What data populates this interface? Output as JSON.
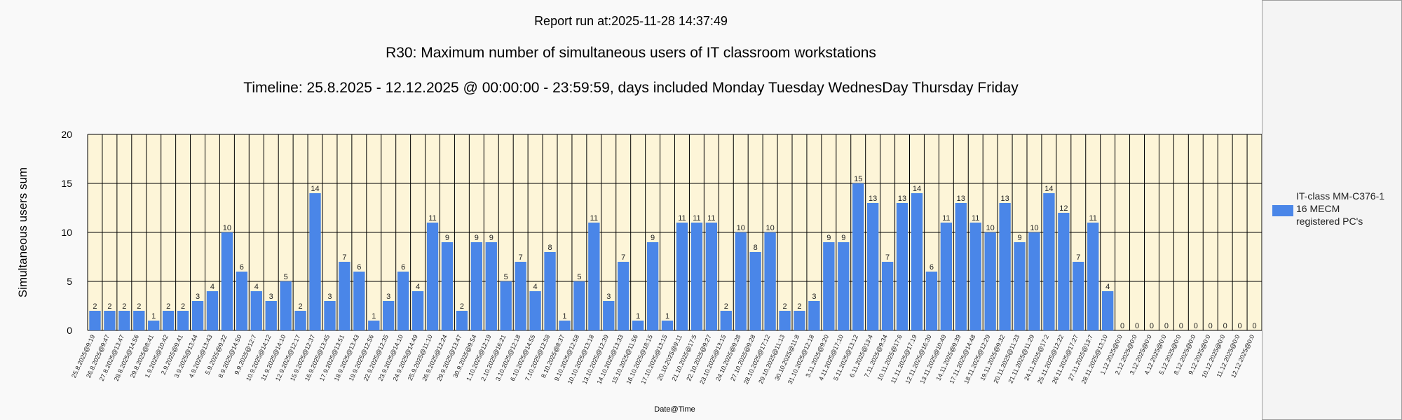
{
  "header": {
    "run_line": "Report run at:2025-11-28 14:37:49",
    "title": "R30: Maximum number of simultaneous users of IT classroom workstations",
    "timeline": "Timeline: 25.8.2025  - 12.12.2025  @  00:00:00 -  23:59:59, days included Monday Tuesday WednesDay Thursday Friday"
  },
  "legend": {
    "label": "IT-class MM-C376-1\n16 MECM\n registered PC's"
  },
  "colors": {
    "bar": "#4a86e8",
    "plot_background": "#fdf5d8",
    "grid": "#000000"
  },
  "chart_data": {
    "type": "bar",
    "xlabel": "Date@Time",
    "ylabel": "Simultaneous users sum",
    "ylim": [
      0,
      20
    ],
    "yticks": [
      0,
      5,
      10,
      15,
      20
    ],
    "grid": true,
    "legend_position": "right",
    "categories": [
      "25.8.2025@9:19",
      "26.8.2025@9:47",
      "27.8.2025@13:47",
      "28.8.2025@14:56",
      "29.8.2025@8:41",
      "1.9.2025@10:42",
      "2.9.2025@9:41",
      "3.9.2025@13:44",
      "4.9.2025@13:43",
      "5.9.2025@9:22",
      "8.9.2025@14:50",
      "9.9.2025@12:7",
      "10.9.2025@14:12",
      "11.9.2025@14:10",
      "12.9.2025@12:17",
      "15.9.2025@12:37",
      "16.9.2025@13:45",
      "17.9.2025@13:51",
      "18.9.2025@13:43",
      "19.9.2025@12:56",
      "22.9.2025@12:35",
      "23.9.2025@14:10",
      "24.9.2025@14:49",
      "25.9.2025@11:10",
      "26.9.2025@12:24",
      "29.9.2025@13:47",
      "30.9.2025@9:54",
      "1.10.2025@12:19",
      "2.10.2025@16:21",
      "3.10.2025@12:18",
      "6.10.2025@14:55",
      "7.10.2025@12:58",
      "8.10.2025@8:37",
      "9.10.2025@12:58",
      "10.10.2025@13:18",
      "13.10.2025@12:39",
      "14.10.2025@13:33",
      "15.10.2025@11:56",
      "16.10.2025@18:15",
      "17.10.2025@13:15",
      "20.10.2025@9:11",
      "21.10.2025@17:5",
      "22.10.2025@9:27",
      "23.10.2025@13:15",
      "24.10.2025@9:28",
      "27.10.2025@9:28",
      "28.10.2025@17:12",
      "29.10.2025@11:13",
      "30.10.2025@11:8",
      "31.10.2025@12:18",
      "3.11.2025@9:20",
      "4.11.2025@17:10",
      "5.11.2025@13:12",
      "6.11.2025@13:4",
      "7.11.2025@9:34",
      "10.11.2025@17:6",
      "11.11.2025@17:19",
      "12.11.2025@16:30",
      "13.11.2025@10:49",
      "14.11.2025@9:39",
      "17.11.2025@14:48",
      "18.11.2025@12:29",
      "19.11.2025@9:32",
      "20.11.2025@11:23",
      "21.11.2025@11:29",
      "24.11.2025@17:2",
      "25.11.2025@12:22",
      "26.11.2025@17:27",
      "27.11.2025@13:7",
      "28.11.2025@13:10",
      "1.12.2025@0:0",
      "2.12.2025@0:0",
      "3.12.2025@0:0",
      "4.12.2025@0:0",
      "5.12.2025@0:0",
      "8.12.2025@0:0",
      "9.12.2025@0:0",
      "10.12.2025@0:0",
      "11.12.2025@0:0",
      "12.12.2025@0:0"
    ],
    "series": [
      {
        "name": "IT-class MM-C376-1 16 MECM registered PC's",
        "values": [
          2,
          2,
          2,
          2,
          1,
          2,
          2,
          3,
          4,
          10,
          6,
          4,
          3,
          5,
          2,
          14,
          3,
          7,
          6,
          1,
          3,
          6,
          4,
          11,
          9,
          2,
          9,
          9,
          5,
          7,
          4,
          8,
          1,
          5,
          11,
          3,
          7,
          1,
          9,
          1,
          11,
          11,
          11,
          2,
          10,
          8,
          10,
          2,
          2,
          3,
          9,
          9,
          15,
          13,
          7,
          13,
          14,
          6,
          11,
          13,
          11,
          10,
          13,
          9,
          10,
          14,
          12,
          7,
          11,
          4,
          0,
          0,
          0,
          0,
          0,
          0,
          0,
          0,
          0,
          0
        ]
      }
    ]
  }
}
